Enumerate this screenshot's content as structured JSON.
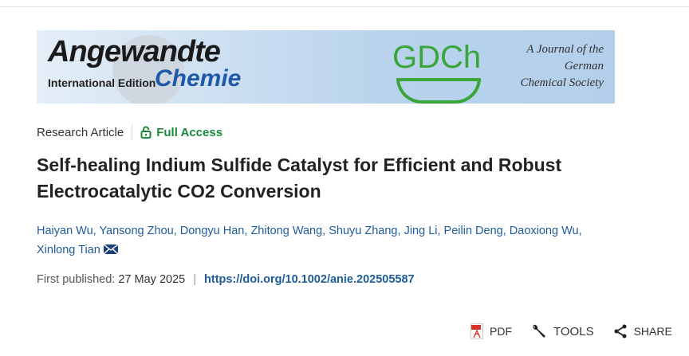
{
  "banner": {
    "journal": "Angewandte",
    "edition": "International Edition",
    "subtitle": "Chemie",
    "society_logo": "GDCh",
    "society_text": [
      "A Journal of the",
      "German",
      "Chemical Society"
    ]
  },
  "article": {
    "type": "Research Article",
    "access": "Full Access",
    "access_color": "#1a8a3d",
    "title": "Self-healing Indium Sulfide Catalyst for Efficient and Robust Electrocatalytic CO2 Conversion",
    "authors": [
      "Haiyan Wu",
      "Yansong Zhou",
      "Dongyu Han",
      "Zhitong Wang",
      "Shuyu Zhang",
      "Jing Li",
      "Peilin Deng",
      "Daoxiong Wu",
      "Xinlong Tian"
    ],
    "published_label": "First published:",
    "published_date": "27 May 2025",
    "doi": "https://doi.org/10.1002/anie.202505587"
  },
  "toolbar": {
    "pdf": "PDF",
    "tools": "TOOLS",
    "share": "SHARE"
  }
}
